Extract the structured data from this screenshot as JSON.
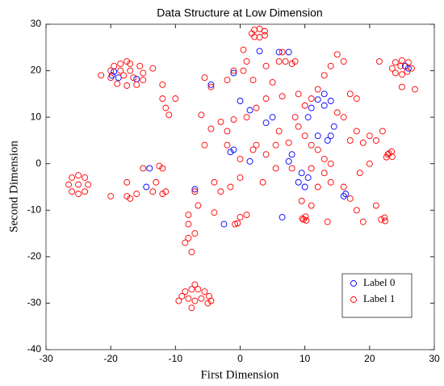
{
  "chart_data": {
    "type": "scatter",
    "title": "Data Structure at Low Dimension",
    "xlabel": "First Dimension",
    "ylabel": "Second Dimension",
    "xlim": [
      -30,
      30
    ],
    "xticks": [
      -30,
      -20,
      -10,
      0,
      10,
      20,
      30
    ],
    "ylim": [
      -40,
      30
    ],
    "yticks": [
      -40,
      -30,
      -20,
      -10,
      0,
      10,
      20,
      30
    ],
    "legend": "southeast",
    "series": [
      {
        "name": "Label 0",
        "color": "#0000ff",
        "x": [
          -19.5,
          -19.8,
          -18.8,
          -16,
          3,
          6,
          7.5,
          -4.5,
          -1,
          0,
          1.5,
          4,
          5,
          8,
          7.5,
          11,
          12,
          13,
          13,
          14,
          14.5,
          14,
          13.5,
          12,
          10.5,
          9.5,
          10.5,
          10,
          9,
          6.5,
          -2.5,
          -1,
          1.5,
          -14,
          -14.5,
          -7,
          16,
          16.3,
          25.5,
          26,
          -1.5
        ],
        "values": [
          19.8,
          19,
          18.5,
          18.2,
          24.2,
          24,
          24,
          17,
          19.5,
          13.5,
          11.5,
          8.8,
          10,
          2,
          0.5,
          12,
          13.8,
          12.5,
          15,
          13.5,
          8,
          6,
          5,
          6,
          10,
          -2,
          -3,
          -5,
          -4,
          -11.5,
          -13,
          3,
          0.5,
          -1,
          -5,
          -5.5,
          -7,
          -6.5,
          21,
          20.5,
          2.5
        ]
      },
      {
        "name": "Label 1",
        "color": "#ff0000",
        "x": [
          -20,
          -20,
          -19.5,
          -18.5,
          -17,
          -15.5,
          -15,
          -15,
          -16,
          -17.5,
          -19,
          -18,
          -17,
          -16.5,
          -18.5,
          23.5,
          24,
          25,
          26,
          26.5,
          24,
          25,
          25.8,
          24.8,
          1.8,
          2.2,
          3,
          3.8,
          3.8,
          2.2,
          3,
          -26.5,
          -26,
          -25,
          -24,
          -23.5,
          -24,
          -25,
          -26,
          -25,
          -9.5,
          -9,
          -8.5,
          -7.5,
          -6.5,
          -5.5,
          -4.8,
          -4.5,
          -5,
          -7,
          -8,
          -6,
          -7,
          -7.5,
          22.8,
          23.4,
          23.5,
          22.6,
          23,
          9.6,
          10.1,
          10.2,
          9.8,
          21.8,
          22.3,
          22.4,
          -0.8,
          -0.4,
          -21.5,
          -17.5,
          -13.5,
          -12,
          -11.5,
          -11,
          -10,
          -12,
          -5.5,
          -4.5,
          -2,
          -1,
          0.5,
          1,
          0.5,
          2,
          4,
          5,
          6,
          6.5,
          7,
          8,
          8.5,
          6.5,
          4,
          2.5,
          1,
          -1,
          -3,
          -2,
          -4.5,
          -6,
          -5.5,
          -2,
          0,
          2,
          2.5,
          4,
          5.5,
          5.5,
          3.5,
          0,
          -1.5,
          -3,
          -4,
          -7,
          -6.5,
          -8,
          -7,
          -8,
          -8.5,
          -7.5,
          -13,
          -13.5,
          -12,
          -11.5,
          -12,
          -12.5,
          -15,
          -17.5,
          -17.5,
          -17,
          -16,
          -20,
          -4,
          0,
          1,
          9,
          10,
          11,
          12,
          13,
          14,
          15,
          16,
          17,
          18,
          15,
          16,
          17,
          18,
          19,
          20,
          21,
          22,
          21.5,
          25,
          27,
          9,
          10,
          11,
          12,
          13,
          14,
          11,
          13,
          14,
          12,
          9.5,
          11,
          13.5,
          16,
          17,
          18,
          19,
          21,
          18.5,
          20,
          8,
          7.5,
          6,
          8.5,
          -8
        ],
        "values": [
          20,
          18.5,
          21,
          21.5,
          21.5,
          21,
          19.5,
          18,
          17,
          16.8,
          17.2,
          19,
          20,
          18.5,
          20,
          20.5,
          21.8,
          22.2,
          21.8,
          20.5,
          19.5,
          19.2,
          19.8,
          21,
          28,
          28.8,
          29,
          28.5,
          27.6,
          27.3,
          27.2,
          -4.5,
          -3,
          -2.5,
          -3,
          -4.5,
          -6,
          -6.5,
          -6,
          -4.5,
          -29.5,
          -28.5,
          -27.5,
          -27,
          -27,
          -27.5,
          -28.5,
          -29.5,
          -30,
          -29.5,
          -29,
          -29,
          -26,
          -31,
          2,
          2.6,
          1.5,
          1.4,
          2.2,
          -11.8,
          -11.4,
          -12.2,
          -12,
          -12,
          -11.6,
          -12.3,
          -13,
          -12.8,
          19,
          22,
          20.5,
          17,
          12,
          10.5,
          14,
          14,
          18.5,
          16.5,
          18,
          20,
          24.5,
          22,
          20,
          18,
          21,
          17.5,
          22,
          24,
          22,
          21.5,
          22,
          14.5,
          14,
          12,
          10,
          9.5,
          9,
          7,
          7.5,
          10.5,
          4,
          4,
          1,
          3,
          4,
          2,
          4,
          -1,
          -4,
          -3,
          -5,
          -6,
          -4,
          -6,
          -9,
          -11,
          -15,
          -16,
          -17,
          -19,
          -4,
          -6,
          -6.5,
          -6,
          -1,
          -0.5,
          -1,
          -4,
          -7,
          -7.5,
          -6.5,
          -7,
          -10.5,
          -11.5,
          -11,
          15,
          12.5,
          14,
          16,
          19,
          21,
          23.5,
          22,
          15,
          14,
          11,
          10,
          5,
          7,
          4.5,
          6,
          5,
          7,
          22,
          16.5,
          16,
          8,
          6,
          4,
          3,
          1,
          0,
          -1,
          -2,
          -4,
          -5,
          -8,
          -9,
          -12.5,
          -5,
          -7.5,
          -10,
          -12.5,
          -9,
          -2,
          0,
          -1,
          4.5,
          7,
          10,
          -13
        ]
      }
    ]
  }
}
